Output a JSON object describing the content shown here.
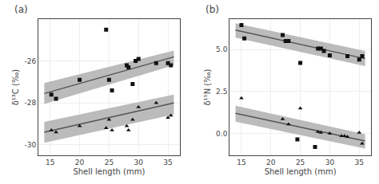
{
  "chart_data": [
    {
      "type": "scatter",
      "title": "(a)",
      "xlabel": "Shell length (mm)",
      "ylabel": "δ¹³C (‰)",
      "xlim": [
        13,
        37
      ],
      "ylim": [
        -30.5,
        -24.0
      ],
      "xticks": [
        15,
        20,
        25,
        30,
        35
      ],
      "yticks": [
        -30,
        -28,
        -26
      ],
      "grid": true,
      "series": [
        {
          "type": "band",
          "color": "#bbbbbb",
          "x": [
            14,
            36
          ],
          "lower": [
            -28.05,
            -26.2
          ],
          "upper": [
            -27.05,
            -25.5
          ]
        },
        {
          "type": "band",
          "color": "#bbbbbb",
          "x": [
            14,
            36
          ],
          "lower": [
            -29.9,
            -28.55
          ],
          "upper": [
            -28.9,
            -27.6
          ]
        },
        {
          "type": "line",
          "color": "#555555",
          "x": [
            14,
            36
          ],
          "values": [
            -27.55,
            -25.8
          ]
        },
        {
          "type": "line",
          "color": "#555555",
          "x": [
            14,
            36
          ],
          "values": [
            -29.4,
            -28.0
          ]
        },
        {
          "type": "scatter",
          "marker": "square",
          "color": "#111111",
          "x": [
            15.2,
            16.0,
            20.0,
            25.0,
            25.5,
            28.0,
            28.3,
            29.0,
            29.5,
            30.0,
            33.0,
            35.0,
            35.5
          ],
          "values": [
            -27.6,
            -27.8,
            -26.9,
            -26.9,
            -27.4,
            -26.2,
            -26.3,
            -27.1,
            -26.0,
            -25.9,
            -26.1,
            -26.1,
            -26.2
          ]
        },
        {
          "type": "scatter",
          "marker": "triangle",
          "color": "#111111",
          "x": [
            15.2,
            16.0,
            20.0,
            24.5,
            25.0,
            25.5,
            28.0,
            28.3,
            29.0,
            30.0,
            33.0,
            35.0,
            35.5
          ],
          "values": [
            -29.3,
            -29.4,
            -29.1,
            -29.2,
            -28.8,
            -29.3,
            -29.1,
            -29.3,
            -28.8,
            -28.2,
            -28.0,
            -28.7,
            -28.6
          ]
        },
        {
          "type": "scatter",
          "marker": "square",
          "color": "#111111",
          "x": [
            24.5
          ],
          "values": [
            -24.5
          ]
        }
      ]
    },
    {
      "type": "scatter",
      "title": "(b)",
      "xlabel": "Shell length (mm)",
      "ylabel": "δ¹⁵N (‰)",
      "xlim": [
        13,
        37
      ],
      "ylim": [
        -1.3,
        6.8
      ],
      "xticks": [
        15,
        20,
        25,
        30,
        35
      ],
      "yticks": [
        {
          "value": 0.0,
          "label": "0.0"
        },
        2.5,
        {
          "value": 5.0,
          "label": "5.0"
        }
      ],
      "grid": true,
      "series": [
        {
          "type": "band",
          "color": "#bbbbbb",
          "x": [
            14,
            36
          ],
          "lower": [
            5.7,
            4.0
          ],
          "upper": [
            6.55,
            4.9
          ]
        },
        {
          "type": "band",
          "color": "#bbbbbb",
          "x": [
            14,
            36
          ],
          "lower": [
            0.7,
            -0.9
          ],
          "upper": [
            1.65,
            -0.05
          ]
        },
        {
          "type": "line",
          "color": "#555555",
          "x": [
            14,
            36
          ],
          "values": [
            6.15,
            4.45
          ]
        },
        {
          "type": "line",
          "color": "#555555",
          "x": [
            14,
            36
          ],
          "values": [
            1.2,
            -0.45
          ]
        },
        {
          "type": "scatter",
          "marker": "square",
          "color": "#111111",
          "x": [
            15.0,
            15.5,
            22.0,
            22.5,
            23.0,
            25.0,
            28.0,
            28.5,
            29.0,
            30.0,
            33.0,
            35.0,
            35.5
          ],
          "values": [
            6.45,
            5.65,
            5.85,
            5.5,
            5.5,
            4.2,
            5.05,
            5.05,
            4.9,
            4.65,
            4.6,
            4.4,
            4.6
          ]
        },
        {
          "type": "scatter",
          "marker": "triangle",
          "color": "#111111",
          "x": [
            15.0,
            22.0,
            23.0,
            25.0,
            28.0,
            28.5,
            30.0,
            32.0,
            32.5,
            33.0,
            35.0,
            35.5
          ],
          "values": [
            2.1,
            0.85,
            0.55,
            1.5,
            0.1,
            0.05,
            0.0,
            -0.15,
            -0.15,
            -0.2,
            0.05,
            -0.6
          ]
        },
        {
          "type": "scatter",
          "marker": "square",
          "color": "#111111",
          "x": [
            24.5,
            27.5
          ],
          "values": [
            -0.35,
            -0.8
          ]
        }
      ]
    }
  ]
}
